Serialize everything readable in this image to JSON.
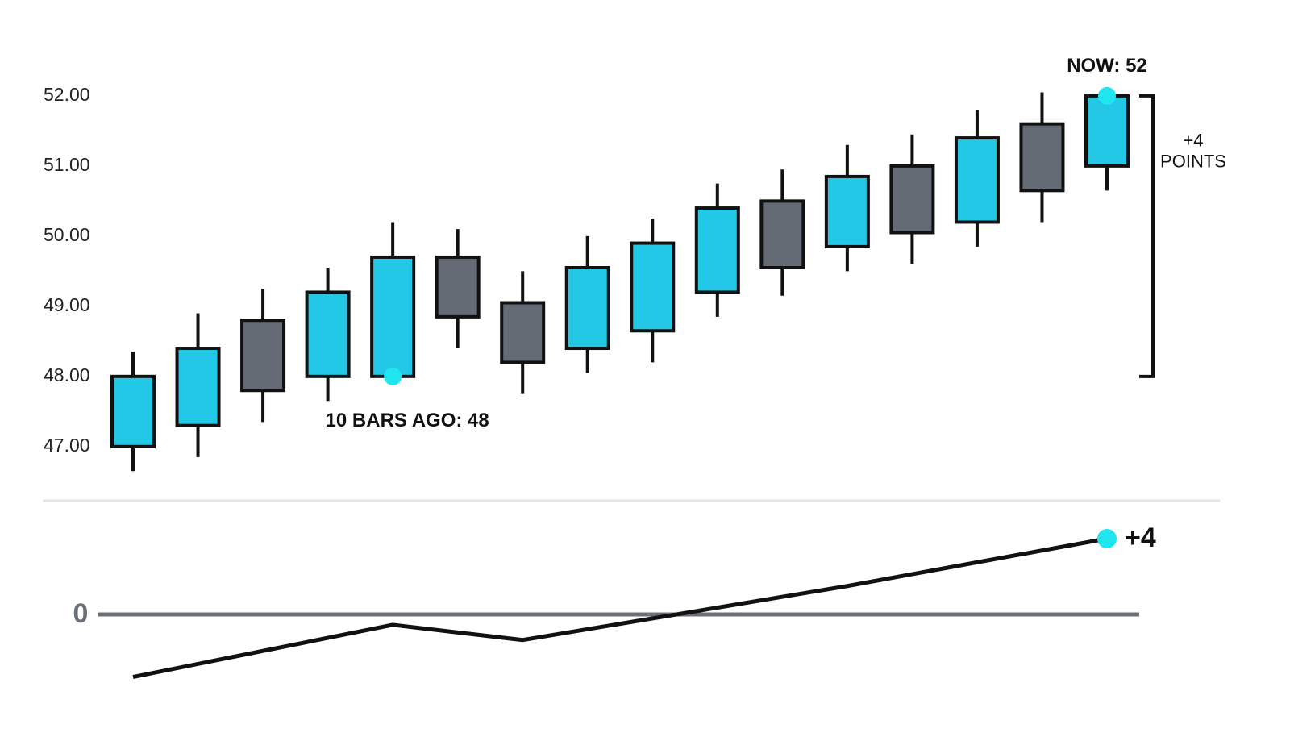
{
  "chart_data": [
    {
      "type": "candlestick",
      "open": [
        47.0,
        47.3,
        48.8,
        48.0,
        48.0,
        49.7,
        49.05,
        48.4,
        48.65,
        49.2,
        50.5,
        49.85,
        51.0,
        50.2,
        51.6,
        51.0
      ],
      "high": [
        48.35,
        48.9,
        49.25,
        49.55,
        50.2,
        50.1,
        49.5,
        50.0,
        50.25,
        50.75,
        50.95,
        51.3,
        51.45,
        51.8,
        52.05,
        52.0
      ],
      "low": [
        46.65,
        46.85,
        47.35,
        47.65,
        48.0,
        48.4,
        47.75,
        48.05,
        48.2,
        48.85,
        49.15,
        49.5,
        49.6,
        49.85,
        50.2,
        50.65
      ],
      "close": [
        48.0,
        48.4,
        47.8,
        49.2,
        49.7,
        48.85,
        48.2,
        49.55,
        49.9,
        50.4,
        49.55,
        50.85,
        50.05,
        51.4,
        50.65,
        52.0
      ],
      "up_color": "#22c8e6",
      "down_color": "#646b75",
      "ylim": [
        46.4,
        52.7
      ],
      "yticks": [
        {
          "value": 47,
          "label": "47.00"
        },
        {
          "value": 48,
          "label": "48.00"
        },
        {
          "value": 49,
          "label": "49.00"
        },
        {
          "value": 50,
          "label": "50.00"
        },
        {
          "value": 51,
          "label": "51.00"
        },
        {
          "value": 52,
          "label": "52.00"
        }
      ],
      "annotations": [
        {
          "text": "NOW: 52",
          "x": 15,
          "value": 52
        },
        {
          "text": "10 BARS AGO: 48",
          "x": 4,
          "value": 48
        }
      ],
      "bracket": {
        "from": 48,
        "to": 52,
        "text": [
          "+4",
          "POINTS"
        ]
      }
    },
    {
      "type": "line",
      "x": [
        0,
        4,
        6,
        11,
        15
      ],
      "values": [
        -3.3,
        -0.55,
        -1.35,
        1.5,
        4
      ],
      "color": "#111111",
      "ylim": [
        -4,
        5
      ],
      "yticks": [
        0
      ],
      "annotations": [
        {
          "text": "+4",
          "x": 15,
          "value": 4
        }
      ]
    }
  ]
}
